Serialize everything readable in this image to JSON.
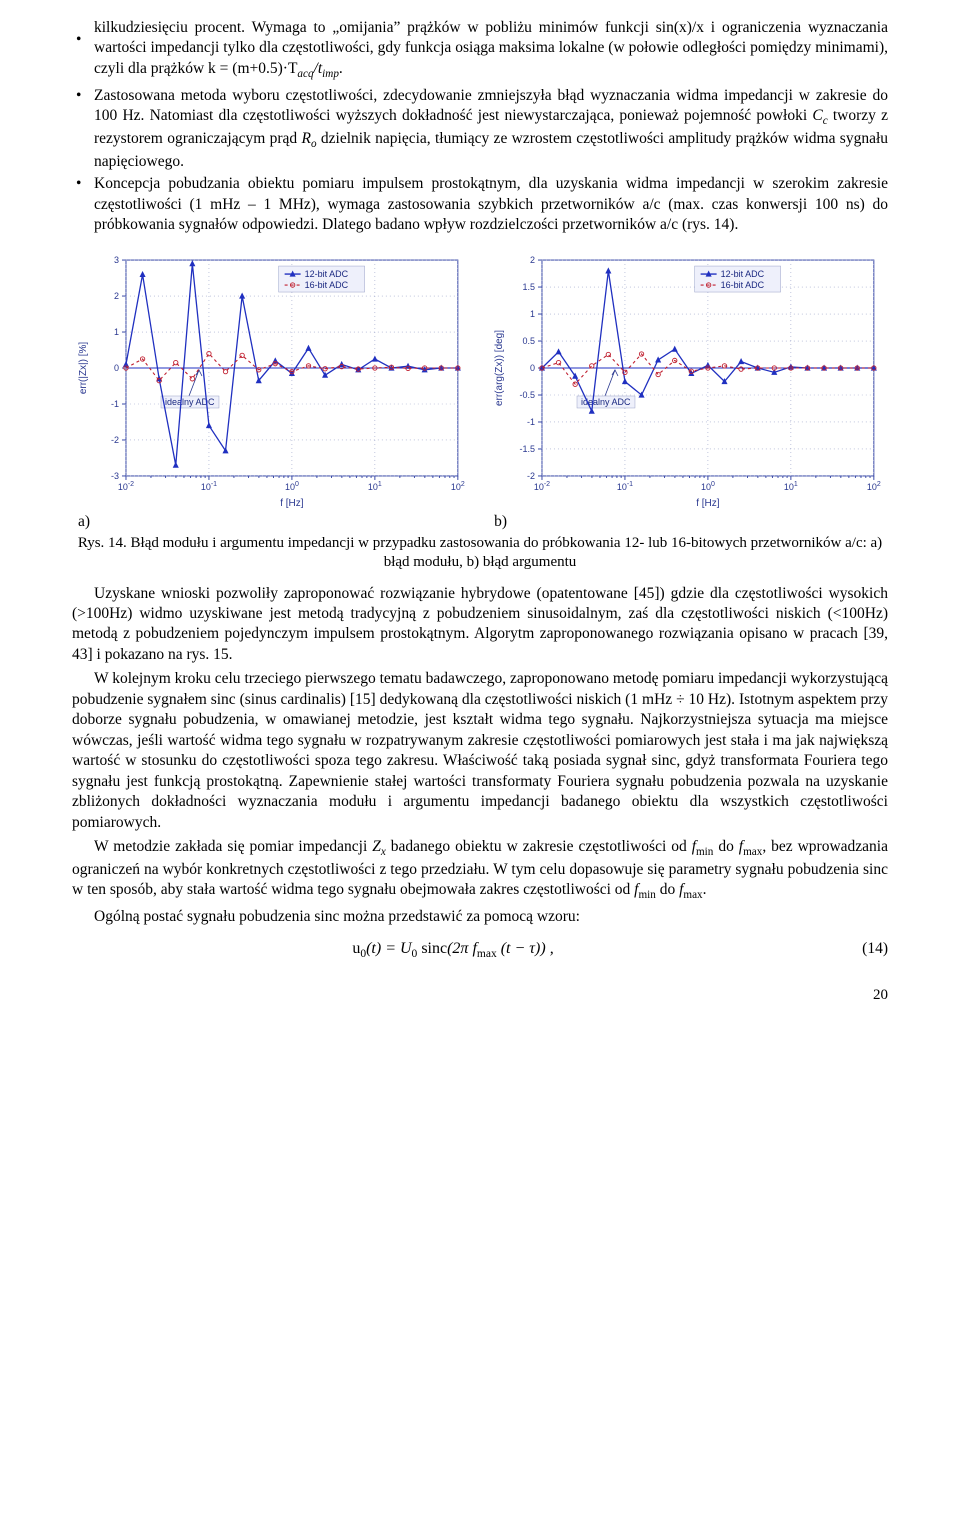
{
  "lead_in": "kilkudziesięciu procent. Wymaga to „omijania” prążków w pobliżu minimów funkcji sin(x)/x i ograniczenia wyznaczania wartości impedancji tylko dla częstotliwości, gdy funkcja osiąga maksima lokalne (w połowie odległości pomiędzy minimami), czyli dla prążków k = (m+0.5)·T",
  "lead_in_sub": "acq",
  "lead_in_tail": "/t",
  "lead_in_sub2": "imp",
  "lead_in_end": ".",
  "bullet2a": "Zastosowana metoda wyboru częstotliwości, zdecydowanie zmniejszyła błąd wyznaczania widma impedancji w zakresie do 100 Hz. Natomiast dla częstotliwości wyższych dokładność jest niewystarczająca, ponieważ pojemność powłoki ",
  "bullet2_cc": "C",
  "bullet2_cc_sub": "c",
  "bullet2b": " tworzy z rezystorem ograniczającym prąd ",
  "bullet2_ro": "R",
  "bullet2_ro_sub": "o",
  "bullet2c": " dzielnik napięcia, tłumiący ze wzrostem częstotliwości amplitudy prążków widma sygnału napięciowego.",
  "bullet3": "Koncepcja pobudzania obiektu pomiaru impulsem prostokątnym, dla uzyskania widma impedancji w szerokim zakresie częstotliwości (1 mHz – 1 MHz), wymaga zastosowania szybkich przetworników a/c (max. czas konwersji 100 ns) do próbkowania sygnałów odpowiedzi. Dlatego badano wpływ rozdzielczości przetworników a/c (rys. 14).",
  "fig": {
    "letter_a": "a)",
    "letter_b": "b)",
    "caption": "Rys. 14. Błąd modułu i argumentu impedancji w przypadku zastosowania do próbkowania 12- lub 16-bitowych przetworników a/c: a) błąd modułu, b) błąd argumentu"
  },
  "chart_a": {
    "ylim": [
      -3,
      3
    ],
    "yticks": [
      -3,
      -2,
      -1,
      0,
      1,
      2,
      3
    ],
    "x_tick_labels": [
      "10^-2",
      "10^-1",
      "10^0",
      "10^1",
      "10^2"
    ],
    "ylabel": "err(|Zx|) [%]",
    "xlabel": "f [Hz]",
    "legend": [
      "12-bit ADC",
      "16-bit ADC"
    ],
    "ideal_label": "idealny ADC",
    "colors": {
      "axis": "#3a4aa8",
      "grid": "#9aa2c8",
      "blue": "#2030c0",
      "red": "#c02030",
      "bg": "#ffffff"
    },
    "blue_y": [
      0.1,
      2.6,
      -0.3,
      -2.7,
      2.9,
      -1.6,
      -2.3,
      2.0,
      -0.35,
      0.2,
      -0.15,
      0.55,
      -0.2,
      0.1,
      -0.05,
      0.25,
      0.0,
      0.05,
      -0.05,
      0.0,
      0.0
    ],
    "red_y": [
      0.0,
      0.25,
      -0.35,
      0.15,
      -0.3,
      0.4,
      -0.1,
      0.35,
      -0.05,
      0.12,
      -0.1,
      0.06,
      -0.02,
      0.04,
      -0.03,
      0.0,
      0.02,
      -0.01,
      0.0,
      0.0,
      0.0
    ]
  },
  "chart_b": {
    "ylim": [
      -2,
      2
    ],
    "yticks": [
      -2,
      -1.5,
      -1,
      -0.5,
      0,
      0.5,
      1,
      1.5,
      2
    ],
    "x_tick_labels": [
      "10^-2",
      "10^-1",
      "10^0",
      "10^1",
      "10^2"
    ],
    "ylabel": "err(arg(Zx)) [deg]",
    "xlabel": "f [Hz]",
    "legend": [
      "12-bit ADC",
      "16-bit ADC"
    ],
    "ideal_label": "idealny ADC",
    "colors": {
      "axis": "#3a4aa8",
      "grid": "#9aa2c8",
      "blue": "#2030c0",
      "red": "#c02030",
      "bg": "#ffffff"
    },
    "blue_y": [
      0.0,
      0.3,
      -0.15,
      -0.8,
      1.8,
      -0.25,
      -0.5,
      0.15,
      0.35,
      -0.1,
      0.05,
      -0.25,
      0.12,
      0.0,
      -0.08,
      0.02,
      0.0,
      0.0,
      0.0,
      0.0,
      0.0
    ],
    "red_y": [
      0.0,
      0.1,
      -0.3,
      0.04,
      0.25,
      -0.08,
      0.26,
      -0.12,
      0.14,
      -0.06,
      0.0,
      0.04,
      -0.02,
      0.0,
      0.0,
      0.0,
      0.0,
      0.0,
      0.0,
      0.0,
      0.0
    ]
  },
  "p1": "Uzyskane wnioski pozwoliły zaproponować rozwiązanie hybrydowe (opatentowane [45]) gdzie dla częstotliwości wysokich (>100Hz) widmo uzyskiwane jest metodą tradycyjną z pobudzeniem sinusoidalnym, zaś dla częstotliwości niskich (<100Hz) metodą z pobudzeniem pojedynczym impulsem prostokątnym. Algorytm zaproponowanego rozwiązania opisano w pracach [39, 43] i pokazano na rys. 15.",
  "p2": "W kolejnym kroku celu trzeciego pierwszego tematu badawczego, zaproponowano metodę pomiaru impedancji wykorzystującą pobudzenie sygnałem sinc (sinus cardinalis) [15] dedykowaną dla częstotliwości niskich (1 mHz ÷ 10 Hz). Istotnym aspektem przy doborze sygnału pobudzenia, w omawianej metodzie, jest kształt widma tego sygnału. Najkorzystniejsza sytuacja ma miejsce wówczas, jeśli wartość widma tego sygnału w rozpatrywanym zakresie częstotliwości pomiarowych jest stała i ma jak największą wartość w stosunku do częstotliwości spoza tego zakresu. Właściwość taką posiada sygnał sinc, gdyż transformata Fouriera tego sygnału jest funkcją prostokątną. Zapewnienie stałej wartości transformaty Fouriera sygnału pobudzenia pozwala na uzyskanie zbliżonych dokładności wyznaczania modułu i argumentu impedancji badanego obiektu dla wszystkich częstotliwości pomiarowych.",
  "p3a": "W metodzie zakłada się pomiar impedancji ",
  "p3_zx": "Z",
  "p3_zx_sub": "x",
  "p3b": " badanego obiektu w zakresie częstotliwości od ",
  "p3_fmin": "f",
  "p3_fmin_sub": "min",
  "p3c": " do ",
  "p3_fmax": "f",
  "p3_fmax_sub": "max",
  "p3d": ", bez wprowadzania ograniczeń na wybór konkretnych częstotliwości z tego przedziału. W tym celu dopasowuje się parametry sygnału pobudzenia sinc w ten sposób, aby stała wartość widma tego sygnału obejmowała zakres częstotliwości od ",
  "p3_fmin2": "f",
  "p3_fmin2_sub": "min",
  "p3e": " do ",
  "p3_fmax2": "f",
  "p3_fmax2_sub": "max",
  "p3f": ".",
  "p4": "Ogólną postać sygnału pobudzenia sinc można przedstawić za pomocą wzoru:",
  "equation": {
    "text": "u₀(t) = U₀ sinc(2π f_max (t − τ)) ,",
    "number": "(14)"
  },
  "page_number": "20"
}
